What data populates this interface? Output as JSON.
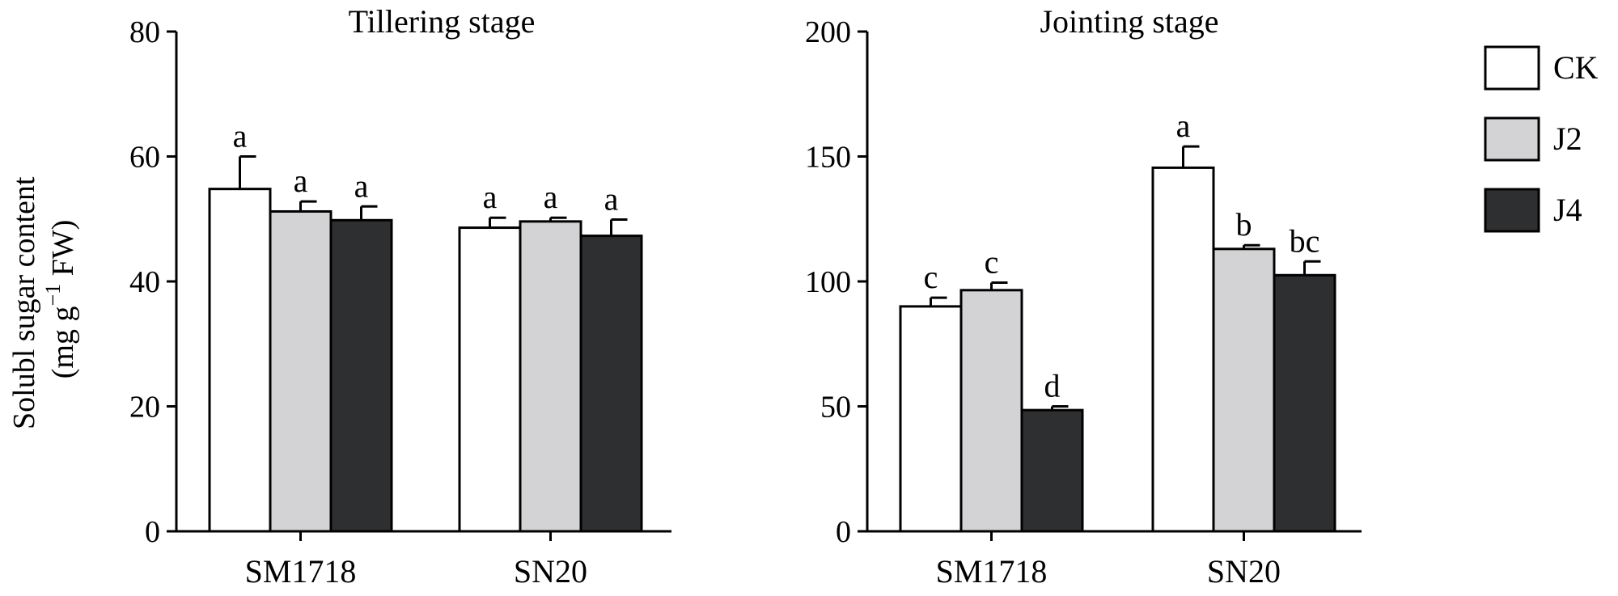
{
  "ylabel_line1": "Solubl sugar content",
  "ylabel_line2_parts": [
    "(mg g",
    "−1",
    " FW)"
  ],
  "legend": [
    {
      "name": "CK",
      "color": "#ffffff"
    },
    {
      "name": "J2",
      "color": "#d3d3d5"
    },
    {
      "name": "J4",
      "color": "#2e2f31"
    }
  ],
  "chart_data": [
    {
      "type": "bar",
      "title": "Tillering stage",
      "categories": [
        "SM1718",
        "SN20"
      ],
      "ylim": [
        0,
        80
      ],
      "yticks": [
        0,
        20,
        40,
        60,
        80
      ],
      "series": [
        {
          "name": "CK",
          "values": [
            54.8,
            48.6
          ],
          "errors": [
            5.2,
            1.6
          ],
          "letters": [
            "a",
            "a"
          ]
        },
        {
          "name": "J2",
          "values": [
            51.2,
            49.6
          ],
          "errors": [
            1.6,
            0.6
          ],
          "letters": [
            "a",
            "a"
          ]
        },
        {
          "name": "J4",
          "values": [
            49.8,
            47.3
          ],
          "errors": [
            2.2,
            2.6
          ],
          "letters": [
            "a",
            "a"
          ]
        }
      ]
    },
    {
      "type": "bar",
      "title": "Jointing stage",
      "categories": [
        "SM1718",
        "SN20"
      ],
      "ylim": [
        0,
        200
      ],
      "yticks": [
        0,
        50,
        100,
        150,
        200
      ],
      "series": [
        {
          "name": "CK",
          "values": [
            90,
            145.5
          ],
          "errors": [
            3.5,
            8.5
          ],
          "letters": [
            "c",
            "a"
          ]
        },
        {
          "name": "J2",
          "values": [
            96.5,
            113
          ],
          "errors": [
            3,
            1.5
          ],
          "letters": [
            "c",
            "b"
          ]
        },
        {
          "name": "J4",
          "values": [
            48.5,
            102.5
          ],
          "errors": [
            1.5,
            5.5
          ],
          "letters": [
            "d",
            "bc"
          ]
        }
      ]
    }
  ]
}
